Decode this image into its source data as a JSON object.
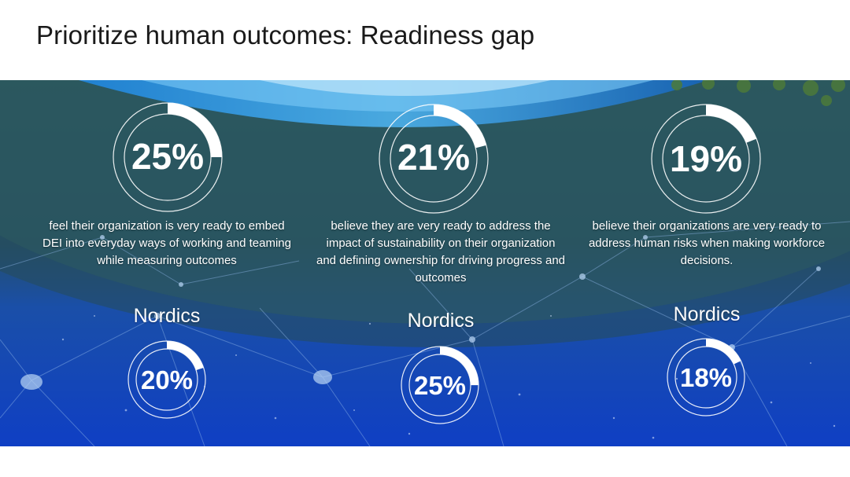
{
  "slide": {
    "title": "Prioritize human outcomes: Readiness gap"
  },
  "colors": {
    "ring_track": "#ffffff",
    "ring_fill": "#ffffff",
    "banner_top": "#2a5a63",
    "banner_bottom": "#1143c0"
  },
  "stats": [
    {
      "global_percent": "25%",
      "global_value": 25,
      "description": "feel their organization is very ready to embed DEI into everyday ways of working and teaming while measuring outcomes",
      "region_label": "Nordics",
      "region_percent": "20%",
      "region_value": 20
    },
    {
      "global_percent": "21%",
      "global_value": 21,
      "description": "believe they are very ready to address the impact of sustainability on their organization and defining ownership for driving progress and outcomes",
      "region_label": "Nordics",
      "region_percent": "25%",
      "region_value": 25
    },
    {
      "global_percent": "19%",
      "global_value": 19,
      "description": "believe their organizations are very ready to address human risks when making workforce decisions.",
      "region_label": "Nordics",
      "region_percent": "18%",
      "region_value": 18
    }
  ]
}
